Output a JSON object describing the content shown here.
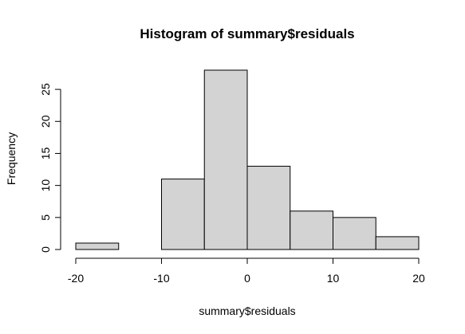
{
  "chart_data": {
    "type": "bar",
    "title": "Histogram of summary$residuals",
    "xlabel": "summary$residuals",
    "ylabel": "Frequency",
    "bins": [
      {
        "from": -20,
        "to": -15,
        "count": 1
      },
      {
        "from": -15,
        "to": -10,
        "count": 0
      },
      {
        "from": -10,
        "to": -5,
        "count": 11
      },
      {
        "from": -5,
        "to": 0,
        "count": 28
      },
      {
        "from": 0,
        "to": 5,
        "count": 13
      },
      {
        "from": 5,
        "to": 10,
        "count": 6
      },
      {
        "from": 10,
        "to": 15,
        "count": 5
      },
      {
        "from": 15,
        "to": 20,
        "count": 2
      }
    ],
    "xlim": [
      -20,
      20
    ],
    "ylim": [
      0,
      28
    ],
    "x_ticks": [
      -20,
      -10,
      0,
      10,
      20
    ],
    "y_ticks": [
      0,
      5,
      10,
      15,
      20,
      25
    ],
    "bar_color": "#d3d3d3",
    "grid": false
  }
}
